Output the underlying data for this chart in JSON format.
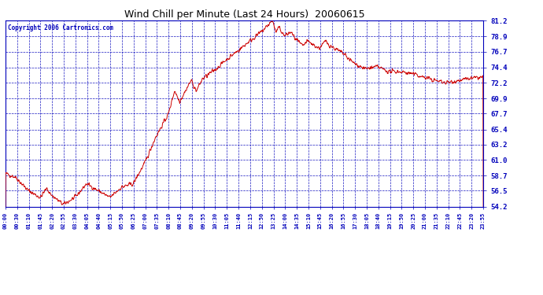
{
  "title": "Wind Chill per Minute (Last 24 Hours)  20060615",
  "copyright": "Copyright 2006 Cartronics.com",
  "line_color": "#cc0000",
  "bg_color": "#ffffff",
  "plot_bg_color": "#ffffff",
  "grid_color": "#0000bb",
  "axis_color": "#0000bb",
  "tick_label_color": "#0000bb",
  "title_color": "#000000",
  "ytick_labels": [
    "54.2",
    "56.5",
    "58.7",
    "61.0",
    "63.2",
    "65.4",
    "67.7",
    "69.9",
    "72.2",
    "74.4",
    "76.7",
    "78.9",
    "81.2"
  ],
  "yticks": [
    54.2,
    56.5,
    58.7,
    61.0,
    63.2,
    65.4,
    67.7,
    69.9,
    72.2,
    74.4,
    76.7,
    78.9,
    81.2
  ],
  "ymin": 54.2,
  "ymax": 81.2,
  "xtick_labels": [
    "00:00",
    "00:30",
    "01:10",
    "01:45",
    "02:20",
    "02:55",
    "03:30",
    "04:05",
    "04:40",
    "05:15",
    "05:50",
    "06:25",
    "07:00",
    "07:35",
    "08:10",
    "08:45",
    "09:20",
    "09:55",
    "10:30",
    "11:05",
    "11:40",
    "12:15",
    "12:50",
    "13:25",
    "14:00",
    "14:35",
    "15:10",
    "15:45",
    "16:20",
    "16:55",
    "17:30",
    "18:05",
    "18:40",
    "19:15",
    "19:50",
    "20:25",
    "21:00",
    "21:35",
    "22:10",
    "22:45",
    "23:20",
    "23:55"
  ]
}
